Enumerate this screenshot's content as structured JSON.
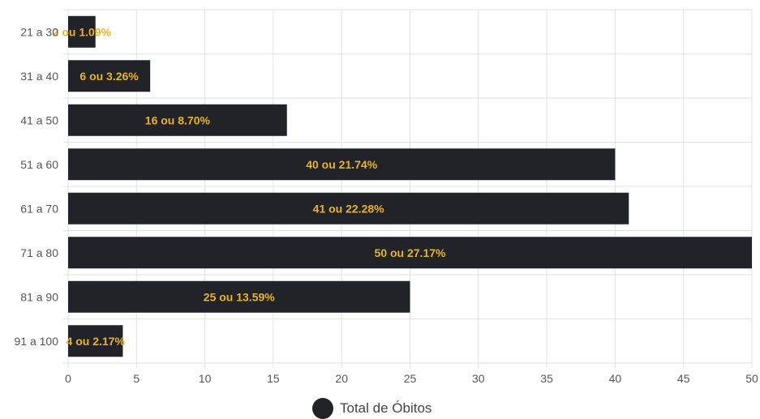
{
  "chart_data": {
    "type": "bar",
    "orientation": "horizontal",
    "categories": [
      "21 a 30",
      "31 a 40",
      "41 a 50",
      "51 a 60",
      "61 a 70",
      "71 a 80",
      "81 a 90",
      "91 a 100"
    ],
    "series": [
      {
        "name": "Total de Óbitos",
        "values": [
          2,
          6,
          16,
          40,
          41,
          50,
          25,
          4
        ],
        "data_labels": [
          "2 ou 1.09%",
          "6 ou 3.26%",
          "16 ou 8.70%",
          "40 ou 21.74%",
          "41 ou 22.28%",
          "50 ou 27.17%",
          "25 ou 13.59%",
          "4 ou 2.17%"
        ]
      }
    ],
    "xlim": [
      0,
      50
    ],
    "x_ticks": [
      0,
      5,
      10,
      15,
      20,
      25,
      30,
      35,
      40,
      45,
      50
    ],
    "grid": true,
    "legend_position": "bottom"
  },
  "colors": {
    "bar": "#212328",
    "data_label": "#e6b32a",
    "grid": "#e2e2e2",
    "axis_text": "#555555"
  }
}
